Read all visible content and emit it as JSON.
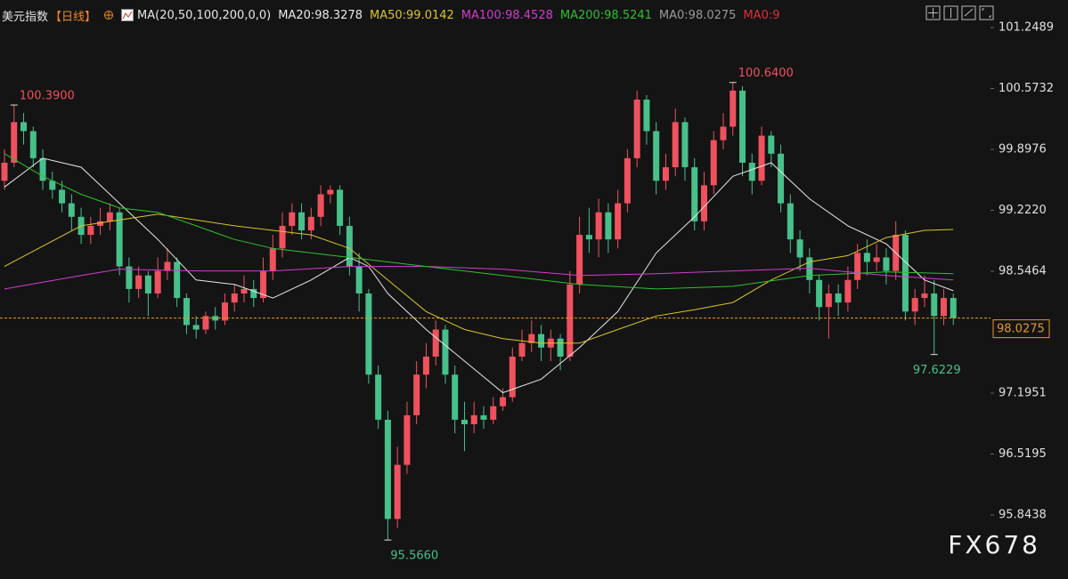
{
  "chart_data": {
    "type": "candlestick",
    "title": "美元指数",
    "period": "【日线】",
    "indicator": "MA(20,50,100,200,0,0)",
    "up_color": "#f0515e",
    "down_color": "#47c08a",
    "open": [
      99.55,
      99.75,
      100.2,
      100.1,
      99.8,
      99.55,
      99.45,
      99.3,
      99.15,
      98.95,
      99.05,
      99.1,
      99.2,
      98.6,
      98.35,
      98.5,
      98.3,
      98.55,
      98.65,
      98.25,
      97.95,
      97.9,
      98.05,
      98.0,
      98.2,
      98.3,
      98.35,
      98.25,
      98.55,
      98.8,
      99.05,
      99.2,
      99.0,
      99.15,
      99.4,
      99.45,
      99.05,
      98.6,
      98.3,
      97.4,
      96.9,
      95.8,
      96.4,
      96.95,
      97.4,
      97.6,
      97.9,
      97.4,
      96.9,
      96.85,
      96.95,
      96.9,
      97.05,
      97.15,
      97.6,
      97.75,
      97.85,
      97.7,
      97.8,
      97.6,
      98.4,
      98.95,
      98.9,
      99.2,
      98.9,
      99.3,
      99.8,
      100.45,
      100.1,
      99.55,
      99.7,
      100.2,
      99.7,
      99.1,
      99.5,
      100.0,
      100.15,
      100.55,
      99.75,
      99.55,
      100.05,
      99.85,
      99.3,
      98.9,
      98.7,
      98.45,
      98.15,
      98.3,
      98.2,
      98.45,
      98.75,
      98.65,
      98.7,
      98.55,
      98.95,
      98.1,
      98.25,
      98.3,
      98.05,
      98.25
    ],
    "high": [
      99.9,
      100.39,
      100.3,
      100.15,
      99.9,
      99.65,
      99.55,
      99.4,
      99.25,
      99.15,
      99.25,
      99.3,
      99.25,
      98.7,
      98.6,
      98.55,
      98.7,
      98.8,
      98.7,
      98.3,
      98.05,
      98.1,
      98.15,
      98.3,
      98.4,
      98.5,
      98.45,
      98.7,
      98.95,
      99.2,
      99.3,
      99.3,
      99.25,
      99.5,
      99.5,
      99.5,
      99.15,
      98.75,
      98.35,
      97.5,
      97.0,
      96.6,
      97.1,
      97.55,
      97.75,
      98.0,
      97.95,
      97.5,
      97.1,
      97.1,
      97.05,
      97.15,
      97.25,
      97.7,
      97.9,
      98.0,
      97.95,
      97.9,
      97.85,
      98.55,
      99.15,
      99.25,
      99.35,
      99.3,
      99.45,
      99.9,
      100.55,
      100.5,
      100.2,
      99.85,
      100.35,
      100.25,
      99.8,
      99.65,
      100.1,
      100.3,
      100.64,
      100.6,
      99.85,
      100.15,
      100.1,
      99.95,
      99.4,
      99.0,
      98.8,
      98.5,
      98.4,
      98.4,
      98.6,
      98.85,
      98.9,
      98.85,
      98.8,
      99.1,
      99.0,
      98.35,
      98.5,
      98.45,
      98.35,
      98.3
    ],
    "low": [
      99.45,
      99.7,
      99.95,
      99.7,
      99.45,
      99.35,
      99.2,
      99.0,
      98.85,
      98.85,
      98.95,
      99.0,
      98.5,
      98.2,
      98.25,
      98.05,
      98.25,
      98.45,
      98.15,
      97.85,
      97.8,
      97.85,
      97.9,
      97.95,
      98.1,
      98.2,
      98.15,
      98.2,
      98.45,
      98.7,
      98.95,
      98.9,
      98.9,
      99.05,
      99.3,
      98.95,
      98.5,
      98.1,
      97.3,
      96.8,
      95.566,
      95.7,
      96.3,
      96.85,
      97.25,
      97.5,
      97.3,
      96.75,
      96.55,
      96.75,
      96.8,
      96.85,
      97.0,
      97.1,
      97.55,
      97.65,
      97.55,
      97.55,
      97.45,
      97.55,
      98.3,
      98.75,
      98.7,
      98.75,
      98.8,
      99.2,
      99.7,
      99.95,
      99.4,
      99.45,
      99.6,
      99.55,
      99.0,
      99.0,
      99.4,
      99.9,
      100.05,
      99.6,
      99.4,
      99.5,
      99.7,
      99.2,
      98.75,
      98.55,
      98.3,
      98.0,
      97.8,
      98.05,
      98.1,
      98.35,
      98.5,
      98.55,
      98.4,
      98.45,
      98.0,
      97.95,
      98.15,
      97.6229,
      97.95,
      97.95
    ],
    "close": [
      99.75,
      100.2,
      100.1,
      99.8,
      99.55,
      99.45,
      99.3,
      99.15,
      98.95,
      99.05,
      99.1,
      99.2,
      98.6,
      98.35,
      98.5,
      98.3,
      98.55,
      98.65,
      98.25,
      97.95,
      97.9,
      98.05,
      98.0,
      98.2,
      98.3,
      98.35,
      98.25,
      98.55,
      98.8,
      99.05,
      99.2,
      99.0,
      99.15,
      99.4,
      99.45,
      99.05,
      98.6,
      98.3,
      97.4,
      96.9,
      95.8,
      96.4,
      96.95,
      97.4,
      97.6,
      97.9,
      97.4,
      96.9,
      96.85,
      96.95,
      96.9,
      97.05,
      97.15,
      97.6,
      97.75,
      97.85,
      97.7,
      97.8,
      97.6,
      98.4,
      98.95,
      98.9,
      99.2,
      98.9,
      99.3,
      99.8,
      100.45,
      100.1,
      99.55,
      99.7,
      100.2,
      99.7,
      99.1,
      99.5,
      100.0,
      100.15,
      100.55,
      99.75,
      99.55,
      100.05,
      99.85,
      99.3,
      98.9,
      98.7,
      98.45,
      98.15,
      98.3,
      98.2,
      98.45,
      98.75,
      98.65,
      98.7,
      98.55,
      98.95,
      98.1,
      98.25,
      98.3,
      98.05,
      98.25,
      98.0275
    ],
    "series": [
      {
        "name": "MA20:98.3278",
        "color": "#e8e8e8",
        "x": [
          0,
          4,
          8,
          12,
          16,
          20,
          24,
          28,
          32,
          36,
          38,
          40,
          44,
          48,
          52,
          56,
          60,
          64,
          68,
          72,
          76,
          80,
          84,
          88,
          92,
          96,
          99
        ],
        "values": [
          99.48,
          99.8,
          99.7,
          99.3,
          98.9,
          98.45,
          98.4,
          98.25,
          98.45,
          98.7,
          98.6,
          98.3,
          97.9,
          97.55,
          97.2,
          97.35,
          97.7,
          98.1,
          98.75,
          99.15,
          99.6,
          99.75,
          99.35,
          99.05,
          98.85,
          98.45,
          98.33
        ]
      },
      {
        "name": "MA50:99.0142",
        "color": "#d9c62a",
        "x": [
          0,
          8,
          16,
          24,
          32,
          36,
          40,
          44,
          48,
          52,
          56,
          60,
          64,
          68,
          72,
          76,
          80,
          84,
          88,
          92,
          96,
          99
        ],
        "values": [
          98.6,
          99.05,
          99.18,
          99.05,
          98.95,
          98.8,
          98.45,
          98.1,
          97.9,
          97.8,
          97.75,
          97.75,
          97.9,
          98.05,
          98.12,
          98.2,
          98.45,
          98.65,
          98.72,
          98.92,
          99.0,
          99.01
        ]
      },
      {
        "name": "MA100:98.4528",
        "color": "#d23cd2",
        "x": [
          0,
          8,
          12,
          20,
          28,
          36,
          44,
          52,
          60,
          68,
          76,
          84,
          92,
          99
        ],
        "values": [
          98.35,
          98.5,
          98.57,
          98.55,
          98.55,
          98.6,
          98.6,
          98.57,
          98.5,
          98.52,
          98.55,
          98.58,
          98.5,
          98.45
        ]
      },
      {
        "name": "MA200:98.5241",
        "color": "#2fc02f",
        "x": [
          0,
          4,
          8,
          12,
          16,
          20,
          24,
          28,
          32,
          36,
          44,
          52,
          60,
          68,
          76,
          84,
          92,
          99
        ],
        "values": [
          99.85,
          99.6,
          99.4,
          99.25,
          99.2,
          99.05,
          98.9,
          98.8,
          98.75,
          98.7,
          98.6,
          98.5,
          98.4,
          98.35,
          98.38,
          98.5,
          98.54,
          98.52
        ]
      }
    ],
    "legend_extra": [
      {
        "name": "MA0:98.0275",
        "color": "#9a9a9a"
      },
      {
        "name": "MA0:9",
        "color": "#e0303a"
      }
    ],
    "last_price": 98.0275,
    "annotations": [
      {
        "value": 100.39,
        "label": "100.3900",
        "color": "#f0515e"
      },
      {
        "value": 100.64,
        "label": "100.6400",
        "color": "#f0515e"
      },
      {
        "value": 95.566,
        "label": "95.5660",
        "color": "#47c08a"
      },
      {
        "value": 97.6229,
        "label": "97.6229",
        "color": "#47c08a"
      }
    ],
    "ylim": [
      95.134,
      101.377
    ],
    "yticks": [
      {
        "value": 95.8438,
        "label": "95.8438"
      },
      {
        "value": 96.5195,
        "label": "96.5195"
      },
      {
        "value": 97.1951,
        "label": "97.1951"
      },
      {
        "value": 98.5464,
        "label": "98.5464"
      },
      {
        "value": 99.222,
        "label": "99.2220"
      },
      {
        "value": 99.8976,
        "label": "99.8976"
      },
      {
        "value": 100.5732,
        "label": "100.5732"
      },
      {
        "value": 101.2489,
        "label": "101.2489"
      }
    ],
    "watermark": "FX678"
  }
}
